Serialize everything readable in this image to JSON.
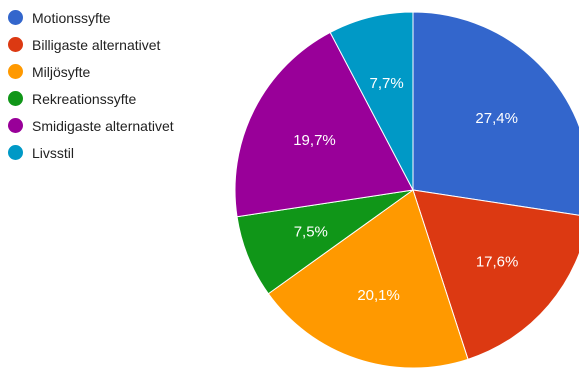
{
  "chart_data": {
    "type": "pie",
    "title": "",
    "legend_position": "left",
    "slices": [
      {
        "name": "Motionssyfte",
        "value": 27.4,
        "label": "27,4%",
        "color": "#3366cc"
      },
      {
        "name": "Billigaste alternativet",
        "value": 17.6,
        "label": "17,6%",
        "color": "#dc3912"
      },
      {
        "name": "Miljösyfte",
        "value": 20.1,
        "label": "20,1%",
        "color": "#ff9900"
      },
      {
        "name": "Rekreationssyfte",
        "value": 7.5,
        "label": "7,5%",
        "color": "#109618"
      },
      {
        "name": "Smidigaste alternativet",
        "value": 19.7,
        "label": "19,7%",
        "color": "#990099"
      },
      {
        "name": "Livsstil",
        "value": 7.7,
        "label": "7,7%",
        "color": "#0099c6"
      }
    ]
  }
}
